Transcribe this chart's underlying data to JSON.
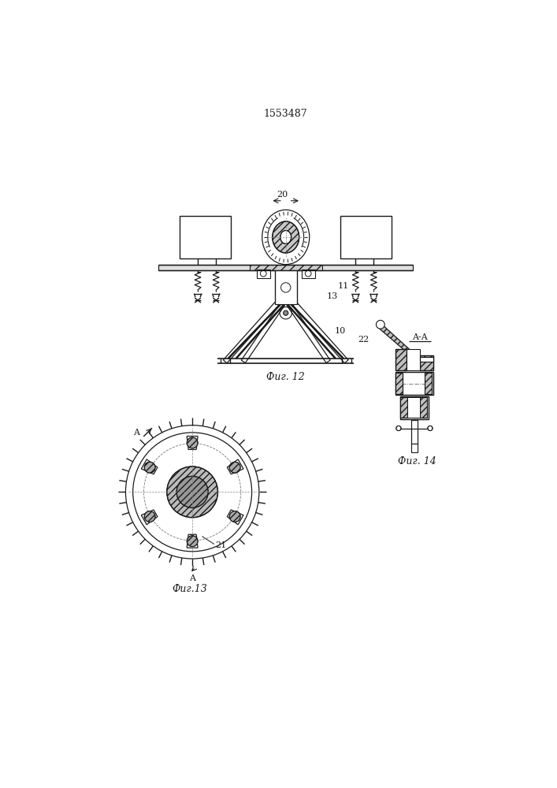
{
  "title": "1553487",
  "fig12_caption": "Фиг. 12",
  "fig13_caption": "Фиг.13",
  "fig14_caption": "Фиг. 14",
  "bg_color": "#ffffff",
  "line_color": "#1a1a1a"
}
